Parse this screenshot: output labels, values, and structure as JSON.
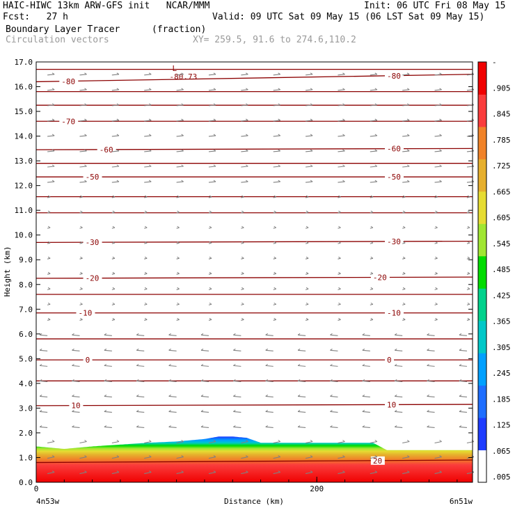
{
  "header": {
    "model": "HAIC-HIWC 13km ARW-GFS init   NCAR/MMM",
    "init": "Init: 06 UTC Fri 08 May 15",
    "fcst": "Fcst:   27 h",
    "valid": "Valid: 09 UTC Sat 09 May 15 (06 LST Sat 09 May 15)",
    "field": "Boundary Layer Tracer",
    "units": "(fraction)",
    "vectors": "Circulation vectors",
    "xy": "XY= 259.5, 91.6 to 274.6,110.2"
  },
  "colors": {
    "contour": "#8b0000",
    "vector": "#808080",
    "scale": [
      "#ffffff",
      "#1e3cff",
      "#1e6eff",
      "#00a0ff",
      "#00c8c8",
      "#00d28c",
      "#00dc00",
      "#a0e632",
      "#e6dc32",
      "#e6af2d",
      "#f08228",
      "#fa3c3c",
      "#f00000"
    ]
  },
  "chart_data": {
    "type": "heatmap",
    "xlabel": "Distance (km)",
    "ylabel": "Height (km)",
    "xlim": [
      0,
      311
    ],
    "ylim": [
      0.0,
      17.0
    ],
    "x_ticks": [
      "0",
      "200"
    ],
    "x_end_labels": [
      "4n53w",
      "6n51w"
    ],
    "y_ticks": [
      "0.0",
      "1.0",
      "2.0",
      "3.0",
      "4.0",
      "5.0",
      "6.0",
      "7.0",
      "8.0",
      "9.0",
      "10.0",
      "11.0",
      "12.0",
      "13.0",
      "14.0",
      "15.0",
      "16.0",
      "17.0"
    ],
    "colorbar_labels": [
      ".005",
      ".065",
      ".125",
      ".185",
      ".245",
      ".305",
      ".365",
      ".425",
      ".485",
      ".545",
      ".605",
      ".665",
      ".725",
      ".785",
      ".845",
      ".905",
      "-"
    ],
    "tracer_top": {
      "x": [
        0,
        20,
        40,
        80,
        100,
        120,
        130,
        140,
        150,
        160,
        240,
        250,
        311
      ],
      "z": [
        1.45,
        1.35,
        1.45,
        1.6,
        1.65,
        1.75,
        1.85,
        1.85,
        1.8,
        1.6,
        1.6,
        1.3,
        1.3
      ]
    },
    "isotherms": [
      {
        "temp": "0",
        "z0": 4.95,
        "z1": 4.95,
        "labels": [
          [
            35,
            "0"
          ],
          [
            250,
            "0"
          ]
        ]
      },
      {
        "temp": "-10",
        "z0": 6.85,
        "z1": 6.85,
        "labels": [
          [
            30,
            "-10"
          ],
          [
            250,
            "-10"
          ]
        ]
      },
      {
        "temp": "-20",
        "z0": 8.25,
        "z1": 8.3,
        "labels": [
          [
            35,
            "-20"
          ],
          [
            240,
            "-20"
          ]
        ]
      },
      {
        "temp": "-30",
        "z0": 9.7,
        "z1": 9.75,
        "labels": [
          [
            35,
            "-30"
          ],
          [
            250,
            "-30"
          ]
        ]
      },
      {
        "temp": "-50",
        "z0": 12.35,
        "z1": 12.35,
        "labels": [
          [
            35,
            "-50"
          ],
          [
            250,
            "-50"
          ]
        ]
      },
      {
        "temp": "-60",
        "z0": 13.45,
        "z1": 13.5,
        "labels": [
          [
            45,
            "-60"
          ],
          [
            250,
            "-60"
          ]
        ]
      },
      {
        "temp": "-70",
        "z0": 14.6,
        "z1": 14.6,
        "labels": [
          [
            18,
            "-70"
          ]
        ]
      },
      {
        "temp": "-80",
        "z0": 16.2,
        "z1": 16.5,
        "labels": [
          [
            18,
            "-80"
          ],
          [
            250,
            "-80"
          ]
        ]
      },
      {
        "temp": "10",
        "z0": 3.1,
        "z1": 3.15,
        "labels": [
          [
            25,
            "10"
          ],
          [
            250,
            "10"
          ]
        ]
      },
      {
        "temp": "20",
        "z0": 0.8,
        "z1": 0.9,
        "labels": [
          [
            240,
            "20"
          ]
        ]
      }
    ],
    "extra_lines": [
      4.1,
      5.8,
      7.6,
      10.9,
      11.55,
      12.9,
      15.25,
      15.8,
      16.7
    ],
    "annotation": {
      "x": 97,
      "z": 16.75,
      "mark": "L",
      "value": "-80.73"
    }
  }
}
